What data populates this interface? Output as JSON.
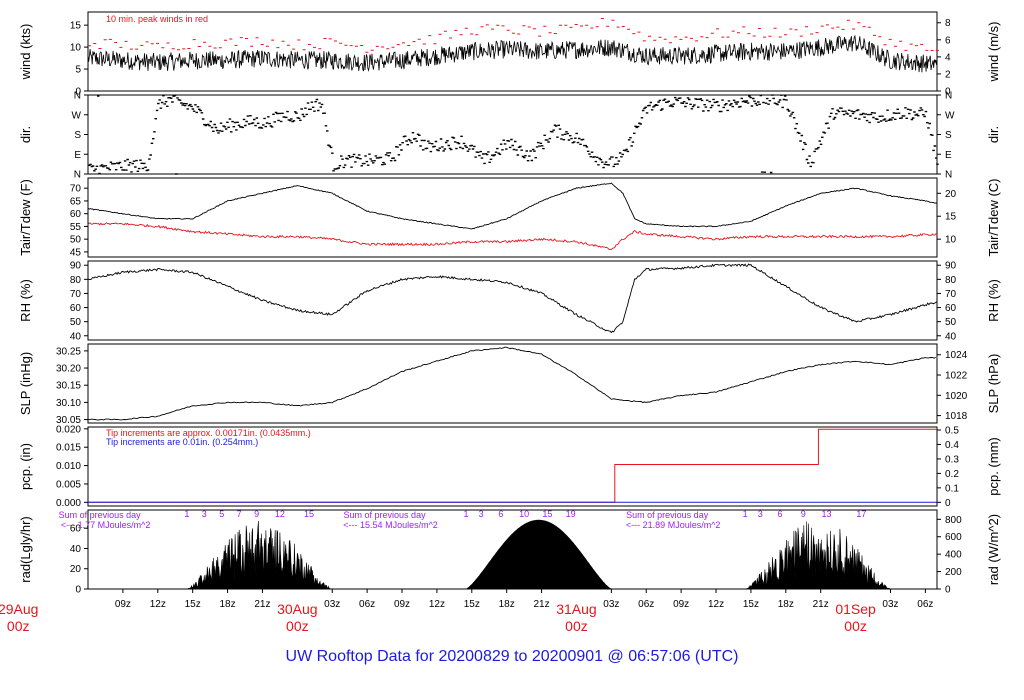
{
  "colors": {
    "frame": "#000000",
    "series_main": "#000000",
    "series_alt": "#e8141b",
    "annotation_red": "#e8141b",
    "annotation_blue": "#1b1be0",
    "annotation_purple": "#a020f0",
    "date_red": "#e8141b",
    "footer_blue": "#1b1be0"
  },
  "footer": {
    "title": "UW Rooftop Data for 20200829  to  20200901 @ 06:57:06  (UTC)"
  },
  "time_axis": {
    "start_hour": 6.0,
    "end_hour": 79.0,
    "tick_labels": [
      "09z",
      "12z",
      "15z",
      "18z",
      "21z",
      "03z",
      "06z",
      "09z",
      "12z",
      "15z",
      "18z",
      "21z",
      "03z",
      "06z",
      "09z",
      "12z",
      "15z",
      "18z",
      "21z",
      "03z",
      "06z"
    ],
    "tick_hours": [
      9,
      12,
      15,
      18,
      21,
      27,
      30,
      33,
      36,
      39,
      42,
      45,
      51,
      54,
      57,
      60,
      63,
      66,
      69,
      75,
      78
    ],
    "dates": [
      {
        "line1": "29Aug",
        "line2": "00z",
        "hour": 0
      },
      {
        "line1": "30Aug",
        "line2": "00z",
        "hour": 24
      },
      {
        "line1": "31Aug",
        "line2": "00z",
        "hour": 48
      },
      {
        "line1": "01Sep",
        "line2": "00z",
        "hour": 72
      }
    ]
  },
  "chart_data": [
    {
      "type": "line",
      "id": "wind",
      "ylabel": "wind (kts)",
      "ylabel2": "wind (m/s)",
      "ylim": [
        0,
        18
      ],
      "yticks": [
        0,
        5,
        10,
        15
      ],
      "y2ticks": [
        0,
        2,
        4,
        6,
        8
      ],
      "annotation": "10 min. peak winds in red",
      "series": [
        {
          "kind": "noisy",
          "x": [
            6,
            9,
            12,
            15,
            18,
            21,
            24,
            27,
            30,
            33,
            36,
            39,
            42,
            45,
            48,
            51,
            54,
            57,
            60,
            63,
            66,
            69,
            72,
            75,
            79
          ],
          "y": [
            7.5,
            7,
            6.5,
            7,
            7,
            7.5,
            7,
            7,
            6.5,
            7,
            8,
            9,
            9.5,
            9,
            9.5,
            10,
            8,
            8,
            8.5,
            9,
            9,
            10,
            11,
            7,
            6
          ]
        },
        {
          "kind": "peak",
          "x": [
            6,
            9,
            12,
            15,
            18,
            21,
            24,
            27,
            30,
            33,
            36,
            39,
            42,
            45,
            48,
            51,
            54,
            57,
            60,
            63,
            66,
            69,
            72,
            75,
            79
          ],
          "y": [
            11,
            10.5,
            10,
            11,
            11,
            11.5,
            10.5,
            11,
            10,
            11,
            12,
            14,
            14,
            13.5,
            14,
            16,
            12,
            12,
            13,
            13.5,
            13,
            14.5,
            15,
            11,
            9
          ]
        }
      ]
    },
    {
      "type": "scatter",
      "id": "dir",
      "ylabel": "dir.",
      "ylabel2": "dir.",
      "yticks_labels": [
        "N",
        "E",
        "S",
        "W",
        "N"
      ],
      "yticks_values": [
        0,
        90,
        180,
        270,
        360
      ],
      "ylim": [
        0,
        360
      ],
      "series": [
        {
          "x": [
            6,
            8,
            10,
            11,
            12,
            13,
            14,
            15,
            16,
            17,
            18,
            19,
            20,
            21,
            22,
            23,
            24,
            25,
            26,
            27,
            28,
            30,
            32,
            33,
            34,
            35,
            36,
            38,
            40,
            42,
            44,
            46,
            48,
            50,
            51,
            52,
            53,
            54,
            56,
            58,
            60,
            62,
            64,
            66,
            68,
            70,
            72,
            74,
            76,
            78,
            79
          ],
          "y": [
            20,
            30,
            40,
            30,
            320,
            340,
            320,
            300,
            250,
            200,
            220,
            230,
            240,
            230,
            250,
            270,
            260,
            310,
            320,
            40,
            60,
            60,
            70,
            140,
            180,
            120,
            130,
            150,
            60,
            140,
            80,
            200,
            160,
            60,
            50,
            80,
            200,
            300,
            330,
            320,
            310,
            330,
            340,
            330,
            50,
            280,
            270,
            260,
            280,
            270,
            40
          ]
        }
      ]
    },
    {
      "type": "line",
      "id": "temp",
      "ylabel": "Tair/Tdew (F)",
      "ylabel2": "Tair/Tdew (C)",
      "ylim": [
        43,
        74
      ],
      "yticks": [
        45,
        50,
        55,
        60,
        65,
        70
      ],
      "y2ticks": [
        10,
        15,
        20
      ],
      "series": [
        {
          "kind": "tair",
          "x": [
            6,
            9,
            12,
            15,
            18,
            21,
            24,
            27,
            30,
            33,
            36,
            39,
            42,
            45,
            48,
            51,
            52,
            53,
            54,
            57,
            60,
            63,
            66,
            69,
            72,
            75,
            78,
            79
          ],
          "y": [
            62,
            60,
            58,
            58,
            65,
            68,
            71,
            68,
            61,
            58,
            56,
            54,
            58,
            65,
            70,
            72,
            68,
            58,
            56,
            55,
            55,
            57,
            63,
            68,
            70,
            67,
            65,
            64
          ]
        },
        {
          "kind": "tdew",
          "x": [
            6,
            9,
            12,
            15,
            18,
            21,
            24,
            27,
            30,
            33,
            36,
            39,
            42,
            45,
            48,
            50,
            51,
            52,
            53,
            54,
            57,
            60,
            63,
            66,
            69,
            72,
            75,
            79
          ],
          "y": [
            56,
            56,
            55,
            53,
            52,
            51,
            51,
            50,
            48,
            48,
            48,
            49,
            49,
            50,
            49,
            47,
            46,
            50,
            53,
            52,
            51,
            50,
            51,
            51,
            51,
            51,
            51,
            52
          ]
        }
      ]
    },
    {
      "type": "line",
      "id": "rh",
      "ylabel": "RH (%)",
      "ylabel2": "RH (%)",
      "ylim": [
        37,
        93
      ],
      "yticks": [
        40,
        50,
        60,
        70,
        80,
        90
      ],
      "y2ticks": [
        40,
        50,
        60,
        70,
        80,
        90
      ],
      "series": [
        {
          "x": [
            6,
            9,
            12,
            15,
            18,
            21,
            24,
            27,
            30,
            33,
            36,
            39,
            42,
            45,
            48,
            51,
            52,
            53,
            54,
            57,
            60,
            63,
            66,
            69,
            72,
            75,
            78,
            79
          ],
          "y": [
            80,
            85,
            87,
            85,
            75,
            65,
            58,
            55,
            72,
            80,
            82,
            80,
            78,
            70,
            55,
            42,
            50,
            80,
            87,
            88,
            90,
            90,
            75,
            60,
            50,
            55,
            62,
            64
          ]
        }
      ]
    },
    {
      "type": "line",
      "id": "slp",
      "ylabel": "SLP (inHg)",
      "ylabel2": "SLP (hPa)",
      "ylim": [
        30.04,
        30.27
      ],
      "yticks": [
        30.05,
        30.1,
        30.15,
        30.2,
        30.25
      ],
      "ytick_labels": [
        "30.05",
        "30.10",
        "30.15",
        "30.20",
        "30.25"
      ],
      "y2ticks_hpa": [
        1018,
        1020,
        1022,
        1024
      ],
      "y2ticks_labels": [
        "1018",
        "1020",
        "1022",
        "1024"
      ],
      "series": [
        {
          "x": [
            6,
            9,
            12,
            15,
            18,
            21,
            24,
            27,
            30,
            33,
            36,
            39,
            42,
            45,
            48,
            51,
            54,
            57,
            60,
            63,
            66,
            69,
            72,
            75,
            78,
            79
          ],
          "y": [
            30.05,
            30.05,
            30.06,
            30.09,
            30.1,
            30.1,
            30.09,
            30.1,
            30.14,
            30.19,
            30.22,
            30.25,
            30.26,
            30.24,
            30.18,
            30.11,
            30.1,
            30.12,
            30.13,
            30.16,
            30.19,
            30.21,
            30.22,
            30.21,
            30.23,
            30.23
          ]
        }
      ]
    },
    {
      "type": "line",
      "id": "pcp",
      "ylabel": "pcp. (in)",
      "ylabel2": "pcp. (mm)",
      "ylim": [
        -0.001,
        0.0205
      ],
      "yticks": [
        0.0,
        0.005,
        0.01,
        0.015,
        0.02
      ],
      "ytick_labels": [
        "0.000",
        "0.005",
        "0.010",
        "0.015",
        "0.020"
      ],
      "y2ticks": [
        0.0,
        0.1,
        0.2,
        0.3,
        0.4,
        0.5
      ],
      "y2tick_labels": [
        "0",
        "0.1",
        "0.2",
        "0.3",
        "0.4",
        "0.5"
      ],
      "annotation_red": "Tip increments are approx. 0.00171in. (0.0435mm.)",
      "annotation_blue": "Tip increments are 0.01in. (0.254mm.)",
      "series": [
        {
          "kind": "step_red",
          "x": [
            6,
            51.3,
            51.3,
            68.8,
            68.8,
            79
          ],
          "y": [
            0,
            0,
            0.0103,
            0.0103,
            0.0199,
            0.0199
          ]
        },
        {
          "kind": "step_blue",
          "x": [
            6,
            79
          ],
          "y": [
            0,
            0
          ]
        }
      ]
    },
    {
      "type": "area",
      "id": "rad",
      "ylabel": "rad(Lgly/hr)",
      "ylabel2": "rad (W/m^2)",
      "ylim": [
        0,
        78
      ],
      "yticks": [
        0,
        20,
        40,
        60
      ],
      "y2ticks_w": [
        0,
        200,
        400,
        600,
        800
      ],
      "y2tick_labels": [
        "0",
        "200",
        "400",
        "600",
        "800"
      ],
      "hour_labels": [
        {
          "text": "1",
          "hour": 14.5
        },
        {
          "text": "3",
          "hour": 16
        },
        {
          "text": "5",
          "hour": 17.5
        },
        {
          "text": "7",
          "hour": 19
        },
        {
          "text": "9",
          "hour": 20.5
        },
        {
          "text": "12",
          "hour": 22.5
        },
        {
          "text": "15",
          "hour": 25
        },
        {
          "text": "1",
          "hour": 38.5
        },
        {
          "text": "3",
          "hour": 39.8
        },
        {
          "text": "6",
          "hour": 41.5
        },
        {
          "text": "10",
          "hour": 43.5
        },
        {
          "text": "15",
          "hour": 45.5
        },
        {
          "text": "19",
          "hour": 47.5
        },
        {
          "text": "1",
          "hour": 62.5
        },
        {
          "text": "3",
          "hour": 63.8
        },
        {
          "text": "6",
          "hour": 65.5
        },
        {
          "text": "9",
          "hour": 67.5
        },
        {
          "text": "13",
          "hour": 69.5
        },
        {
          "text": "17",
          "hour": 72.5
        }
      ],
      "daily_sums": [
        {
          "line1": "Sum of previous day",
          "line2": "<--- 1.77 MJoules/m^2",
          "hour": 7.0
        },
        {
          "line1": "Sum of previous day",
          "line2": "<--- 15.54 MJoules/m^2",
          "hour": 31.5
        },
        {
          "line1": "Sum of previous day",
          "line2": "<--- 21.89 MJoules/m^2",
          "hour": 55.8
        }
      ],
      "days": [
        {
          "start": 14.5,
          "end": 27.0,
          "peak": 68,
          "cloudy": true
        },
        {
          "start": 38.5,
          "end": 51.0,
          "peak": 68,
          "cloudy": false
        },
        {
          "start": 62.5,
          "end": 75.0,
          "peak": 70,
          "cloudy": true
        }
      ]
    }
  ]
}
